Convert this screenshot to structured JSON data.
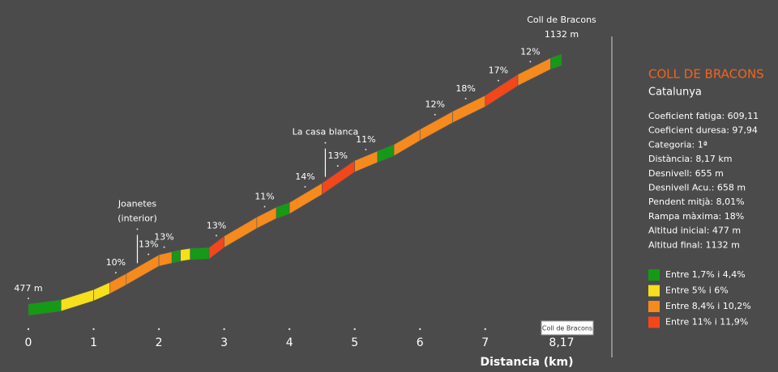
{
  "chart_data": {
    "type": "profile",
    "x_label": "Distancia (km)",
    "xlim": [
      0,
      8.17
    ],
    "xticks": [
      0,
      1,
      2,
      3,
      4,
      5,
      6,
      7,
      {
        "value": 8.17,
        "label": "8,17"
      }
    ],
    "x": [
      0,
      0.5,
      1.0,
      1.25,
      1.5,
      2.0,
      2.2,
      2.33,
      2.48,
      2.77,
      3.0,
      3.5,
      3.8,
      4.0,
      4.5,
      5.0,
      5.35,
      5.6,
      6.0,
      6.5,
      7.0,
      7.5,
      8.0,
      8.17
    ],
    "altitude": [
      477,
      488,
      515,
      534,
      557,
      606,
      614,
      619,
      623,
      625,
      655,
      705,
      731,
      743,
      794,
      853,
      878,
      895,
      935,
      982,
      1024,
      1079,
      1122,
      1132
    ],
    "segment_class": [
      0,
      1,
      1,
      2,
      2,
      2,
      0,
      1,
      0,
      3,
      2,
      2,
      0,
      2,
      3,
      2,
      0,
      2,
      2,
      2,
      3,
      2,
      0
    ],
    "grade_labels": [
      {
        "km": 1.34,
        "label": "10%"
      },
      {
        "km": 1.84,
        "label": "13%"
      },
      {
        "km": 2.08,
        "label": "13%"
      },
      {
        "km": 2.88,
        "label": "13%"
      },
      {
        "km": 3.62,
        "label": "11%"
      },
      {
        "km": 4.24,
        "label": "14%"
      },
      {
        "km": 4.74,
        "label": "13%"
      },
      {
        "km": 5.17,
        "label": "11%"
      },
      {
        "km": 6.23,
        "label": "12%"
      },
      {
        "km": 6.7,
        "label": "18%"
      },
      {
        "km": 7.2,
        "label": "17%"
      },
      {
        "km": 7.69,
        "label": "12%"
      }
    ],
    "places": [
      {
        "km": 1.67,
        "lines": [
          "Joanetes",
          "(interior)"
        ]
      },
      {
        "km": 4.55,
        "lines": [
          "La casa blanca"
        ]
      }
    ],
    "start_label": "477 m",
    "summit_lines": [
      "Coll de Bracons",
      "1132 m"
    ],
    "tooltip": "Coll de Bracons",
    "classes": [
      {
        "name": "Entre 1,7% i 4,4%",
        "color": "#159a15"
      },
      {
        "name": "Entre 5% i 6%",
        "color": "#f6df1c"
      },
      {
        "name": "Entre 8,4% i 10,2%",
        "color": "#f68a1c"
      },
      {
        "name": "Entre 11% i 11,9%",
        "color": "#f3461b"
      }
    ]
  },
  "panel": {
    "title": "COLL DE BRACONS",
    "region": "Catalunya",
    "stats": [
      "Coeficient fatiga: 609,11",
      "Coeficient duresa: 97,94",
      "Categoria: 1ª",
      "Distància: 8,17 km",
      "Desnivell: 655 m",
      "Desnivell Acu.: 658 m",
      "Pendent mitjà: 8,01%",
      "Rampa màxima: 18%",
      "Altitud inicial: 477 m",
      "Altitud final: 1132 m"
    ]
  }
}
